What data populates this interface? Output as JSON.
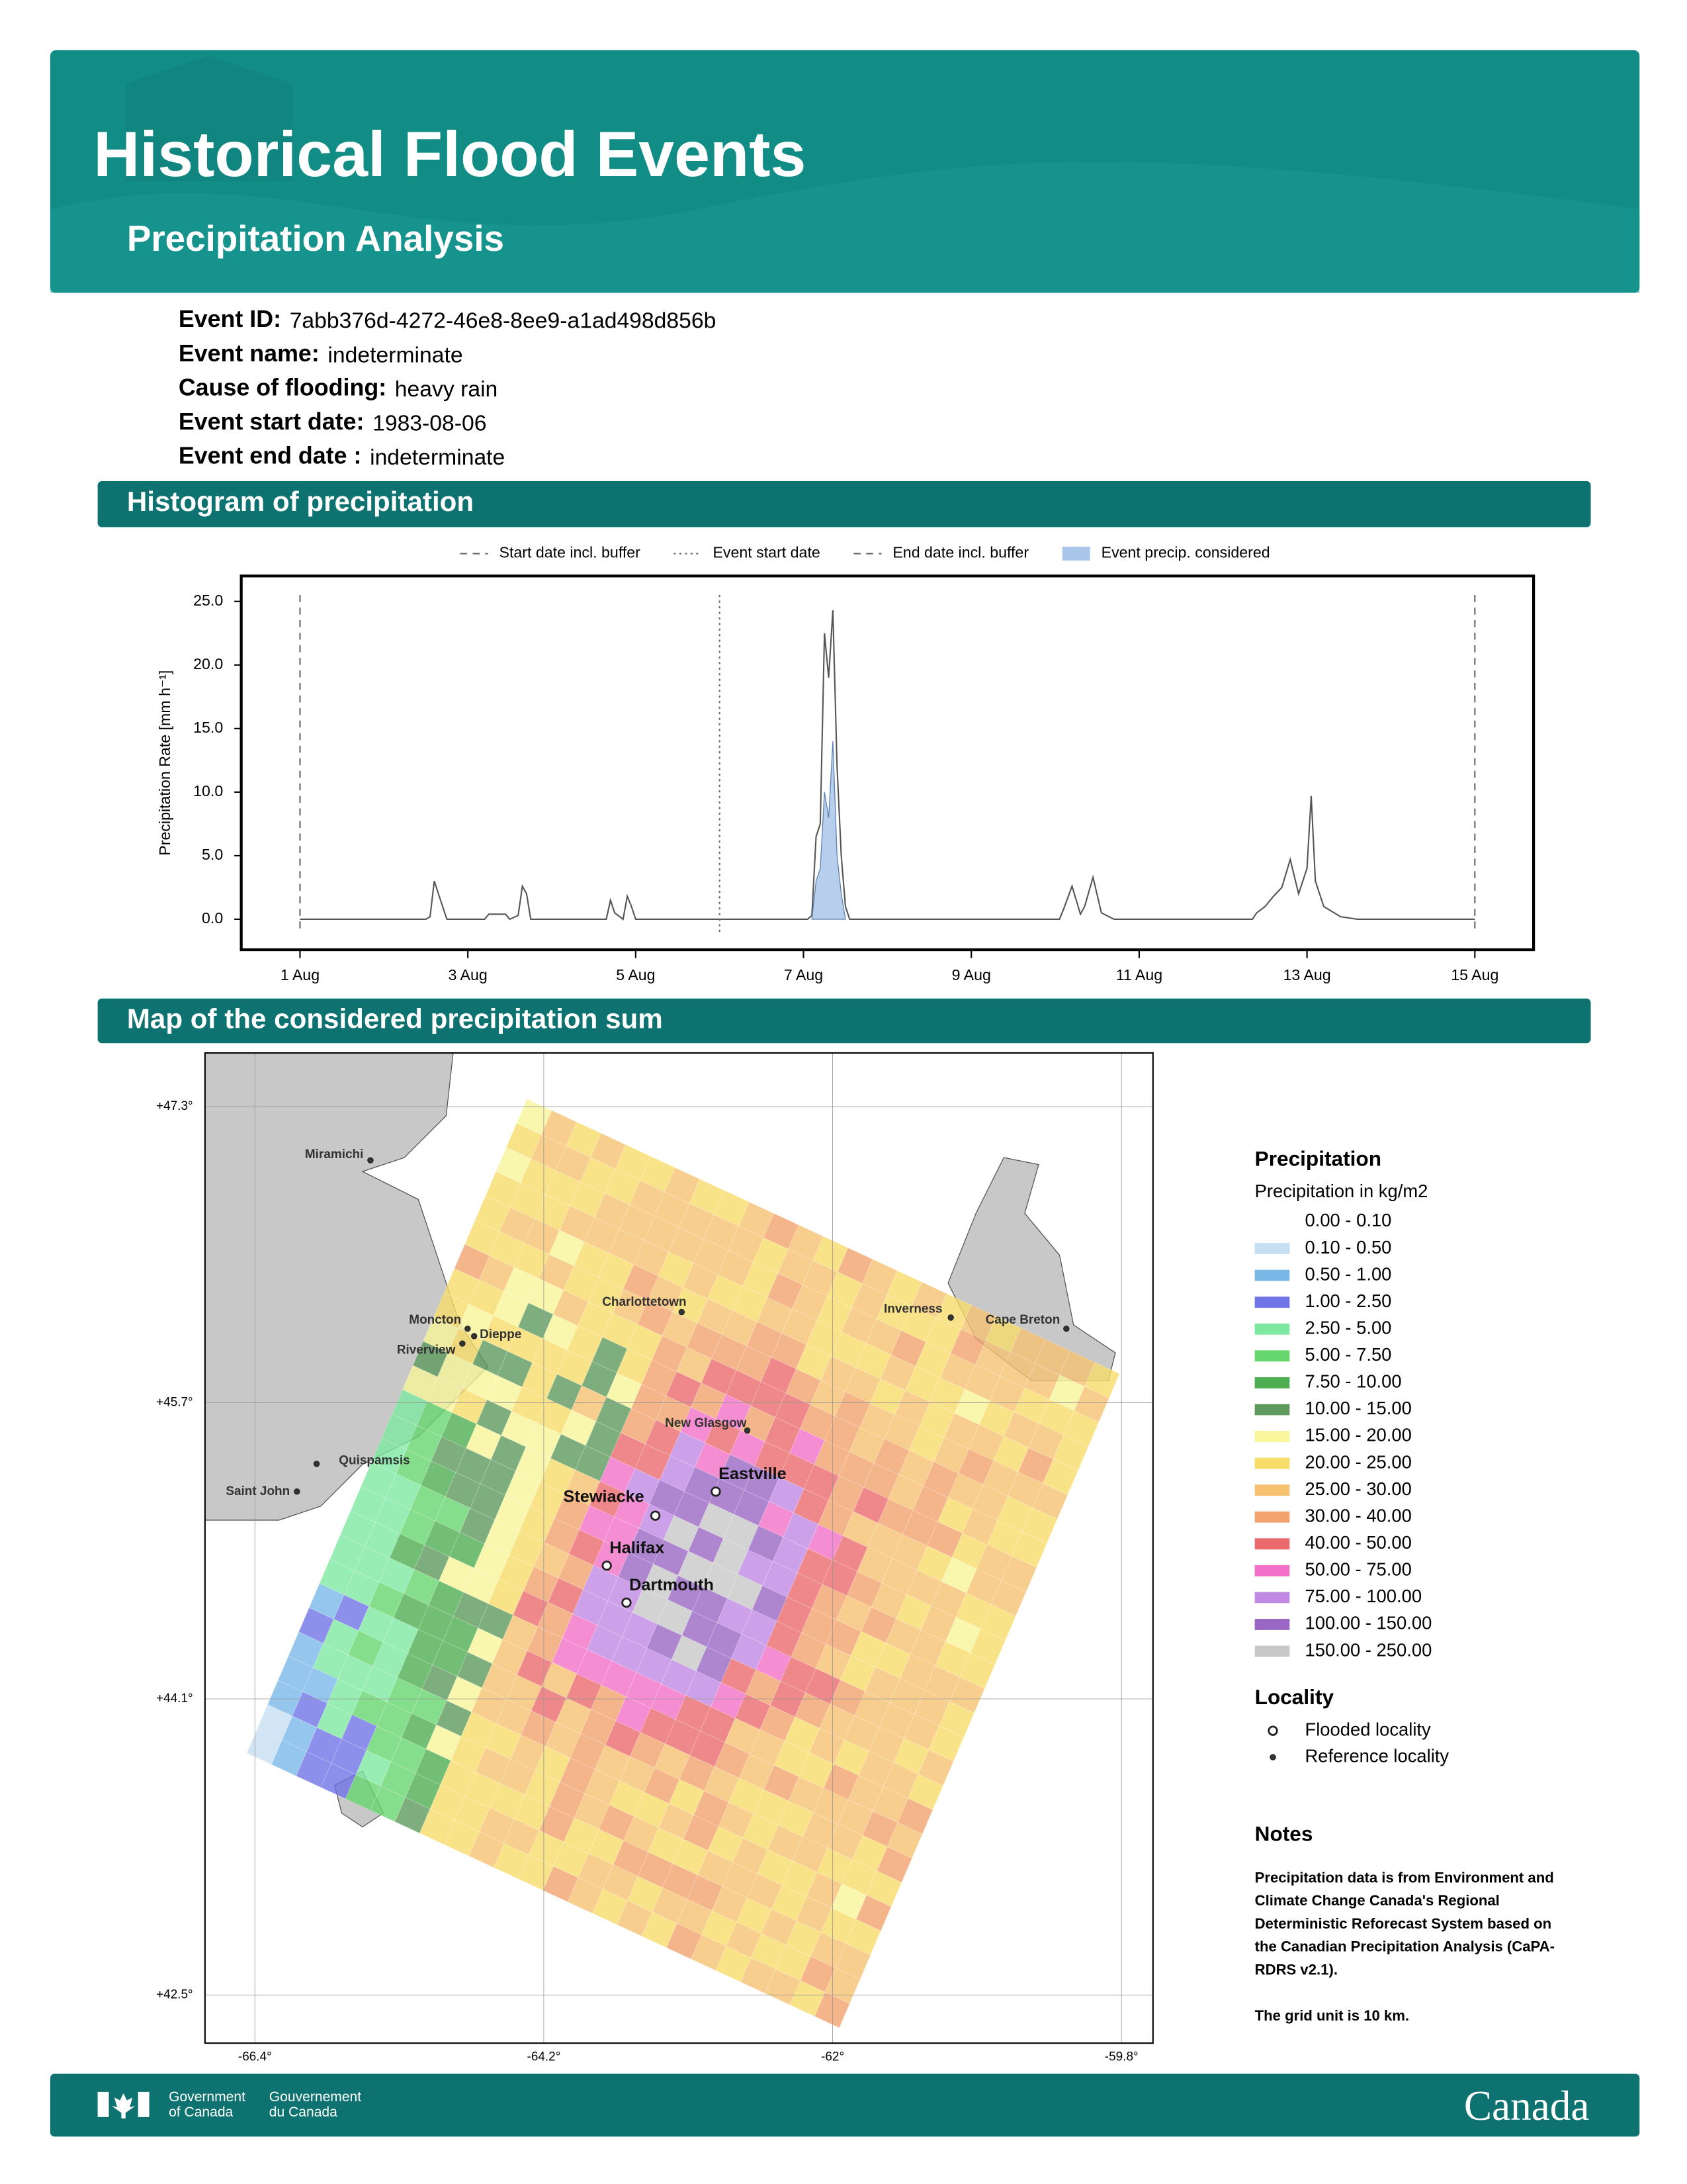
{
  "header": {
    "title": "Historical Flood Events",
    "subtitle": "Precipitation Analysis"
  },
  "event_info": [
    {
      "label": "Event ID:",
      "value": "7abb376d-4272-46e8-8ee9-a1ad498d856b"
    },
    {
      "label": "Event name:",
      "value": "indeterminate"
    },
    {
      "label": "Cause of flooding:",
      "value": "heavy rain"
    },
    {
      "label": "Event start date:",
      "value": "1983-08-06"
    },
    {
      "label": "Event end date :",
      "value": "indeterminate"
    }
  ],
  "sections": [
    "Histogram of precipitation",
    "Map of the considered precipitation sum"
  ],
  "chart_data": {
    "type": "line",
    "y_label": "Precipitation Rate [mm h⁻¹]",
    "xlim": [
      0.3,
      15.7
    ],
    "ylim": [
      -2.4,
      27
    ],
    "xticks": [
      {
        "value": 1,
        "label": "1 Aug"
      },
      {
        "value": 3,
        "label": "3 Aug"
      },
      {
        "value": 5,
        "label": "5 Aug"
      },
      {
        "value": 7,
        "label": "7 Aug"
      },
      {
        "value": 9,
        "label": "9 Aug"
      },
      {
        "value": 11,
        "label": "11 Aug"
      },
      {
        "value": 13,
        "label": "13 Aug"
      },
      {
        "value": 15,
        "label": "15 Aug"
      }
    ],
    "yticks": [
      {
        "value": 0,
        "label": "0.0"
      },
      {
        "value": 5,
        "label": "5.0"
      },
      {
        "value": 10,
        "label": "10.0"
      },
      {
        "value": 15,
        "label": "15.0"
      },
      {
        "value": 20,
        "label": "20.0"
      },
      {
        "value": 25,
        "label": "25.0"
      }
    ],
    "vlines": [
      {
        "name": "Start date incl. buffer",
        "value": 1,
        "style": "dashed"
      },
      {
        "name": "Event start date",
        "value": 6,
        "style": "dotted"
      },
      {
        "name": "End date incl. buffer",
        "value": 15,
        "style": "dashed"
      }
    ],
    "series": [
      {
        "color": "#555555",
        "x": [
          1,
          2.5,
          2.55,
          2.6,
          2.65,
          2.7,
          2.75,
          3.2,
          3.25,
          3.45,
          3.5,
          3.6,
          3.65,
          3.7,
          3.75,
          4.65,
          4.7,
          4.75,
          4.85,
          4.9,
          4.95,
          5.0,
          7.05,
          7.1,
          7.15,
          7.2,
          7.25,
          7.3,
          7.35,
          7.4,
          7.45,
          7.5,
          7.55,
          10.05,
          10.1,
          10.2,
          10.3,
          10.35,
          10.45,
          10.55,
          10.7,
          12.35,
          12.4,
          12.5,
          12.6,
          12.7,
          12.8,
          12.9,
          13.0,
          13.05,
          13.1,
          13.2,
          13.4,
          13.6,
          15
        ],
        "values": [
          0,
          0,
          0.2,
          3.0,
          2.0,
          1.0,
          0,
          0,
          0.4,
          0.4,
          0,
          0.3,
          2.6,
          2.0,
          0,
          0,
          1.5,
          0.5,
          0,
          1.8,
          1.0,
          0,
          0,
          0.3,
          6.5,
          7.5,
          22.5,
          19,
          24.3,
          12,
          5,
          1,
          0,
          0,
          0.8,
          2.6,
          0.4,
          1.0,
          3.3,
          0.5,
          0,
          0,
          0.5,
          1.0,
          1.8,
          2.5,
          4.7,
          2.0,
          4.0,
          9.7,
          3.0,
          1.0,
          0.2,
          0,
          0
        ]
      },
      {
        "name": "Event precip. considered",
        "color": "#aac6ea",
        "x": [
          7.1,
          7.15,
          7.2,
          7.25,
          7.3,
          7.35,
          7.4,
          7.45,
          7.5
        ],
        "values": [
          0,
          3,
          4,
          10,
          8,
          14,
          5,
          2,
          0
        ]
      }
    ]
  },
  "map": {
    "xlim": [
      -66.78,
      -59.56
    ],
    "ylim": [
      42.24,
      47.59
    ],
    "xticks": [
      {
        "value": -66.4,
        "label": "-66.4°"
      },
      {
        "value": -64.2,
        "label": "-64.2°"
      },
      {
        "value": -62,
        "label": "-62°"
      },
      {
        "value": -59.8,
        "label": "-59.8°"
      }
    ],
    "yticks": [
      {
        "value": 47.3,
        "label": "+47.3°"
      },
      {
        "value": 45.7,
        "label": "+45.7°"
      },
      {
        "value": 44.1,
        "label": "+44.1°"
      },
      {
        "value": 42.5,
        "label": "+42.5°"
      }
    ],
    "places": [
      {
        "name": "Miramichi",
        "lon": -65.52,
        "lat": 47.01,
        "kind": "reference"
      },
      {
        "name": "Moncton",
        "lon": -64.78,
        "lat": 46.1,
        "kind": "reference"
      },
      {
        "name": "Dieppe",
        "lon": -64.73,
        "lat": 46.06,
        "kind": "reference"
      },
      {
        "name": "Riverview",
        "lon": -64.82,
        "lat": 46.02,
        "kind": "reference"
      },
      {
        "name": "Charlottetown",
        "lon": -63.15,
        "lat": 46.19,
        "kind": "reference"
      },
      {
        "name": "Inverness",
        "lon": -61.1,
        "lat": 46.16,
        "kind": "reference"
      },
      {
        "name": "Cape Breton",
        "lon": -60.22,
        "lat": 46.1,
        "kind": "reference"
      },
      {
        "name": "New Glasgow",
        "lon": -62.65,
        "lat": 45.55,
        "kind": "reference"
      },
      {
        "name": "Quispamsis",
        "lon": -65.93,
        "lat": 45.37,
        "kind": "reference"
      },
      {
        "name": "Saint John",
        "lon": -66.08,
        "lat": 45.22,
        "kind": "reference"
      },
      {
        "name": "Eastville",
        "lon": -62.89,
        "lat": 45.22,
        "kind": "flooded"
      },
      {
        "name": "Stewiacke",
        "lon": -63.35,
        "lat": 45.09,
        "kind": "flooded"
      },
      {
        "name": "Halifax",
        "lon": -63.72,
        "lat": 44.82,
        "kind": "flooded"
      },
      {
        "name": "Dartmouth",
        "lon": -63.57,
        "lat": 44.62,
        "kind": "flooded"
      }
    ],
    "legend": {
      "title": "Precipitation",
      "subtitle": "Precipitation in kg/m2",
      "classes": [
        {
          "label": "0.00 - 0.10",
          "color": "#ffffff"
        },
        {
          "label": "0.10 - 0.50",
          "color": "#c6dff3"
        },
        {
          "label": "0.50 - 1.00",
          "color": "#7ab8e8"
        },
        {
          "label": "1.00 - 2.50",
          "color": "#6f74e6"
        },
        {
          "label": "2.50 - 5.00",
          "color": "#7de8a0"
        },
        {
          "label": "5.00 - 7.50",
          "color": "#66d66e"
        },
        {
          "label": "7.50 - 10.00",
          "color": "#4fae52"
        },
        {
          "label": "10.00 - 15.00",
          "color": "#5e9a5e"
        },
        {
          "label": "15.00 - 20.00",
          "color": "#f8f59a"
        },
        {
          "label": "20.00 - 25.00",
          "color": "#f7dc6a"
        },
        {
          "label": "25.00 - 30.00",
          "color": "#f6c272"
        },
        {
          "label": "30.00 - 40.00",
          "color": "#f2a36e"
        },
        {
          "label": "40.00 - 50.00",
          "color": "#ea6a6e"
        },
        {
          "label": "50.00 - 75.00",
          "color": "#f270c8"
        },
        {
          "label": "75.00 - 100.00",
          "color": "#c08ae4"
        },
        {
          "label": "100.00 - 150.00",
          "color": "#9a68c4"
        },
        {
          "label": "150.00 - 250.00",
          "color": "#c8c8c8"
        }
      ],
      "locality_title": "Locality",
      "locality_items": [
        "Flooded locality",
        "Reference locality"
      ]
    }
  },
  "notes": {
    "title": "Notes",
    "paragraphs": [
      [
        "Precipitation data is from Environment and",
        "Climate Change Canada's Regional",
        "Deterministic Reforecast System based on",
        "the Canadian Precipitation Analysis (CaPA-",
        "RDRS v2.1)."
      ],
      [
        "The grid unit is 10 km."
      ]
    ]
  },
  "footer": {
    "gov_en": [
      "Government",
      "of Canada"
    ],
    "gov_fr": [
      "Gouvernement",
      "du Canada"
    ],
    "wordmark": "Canada"
  }
}
